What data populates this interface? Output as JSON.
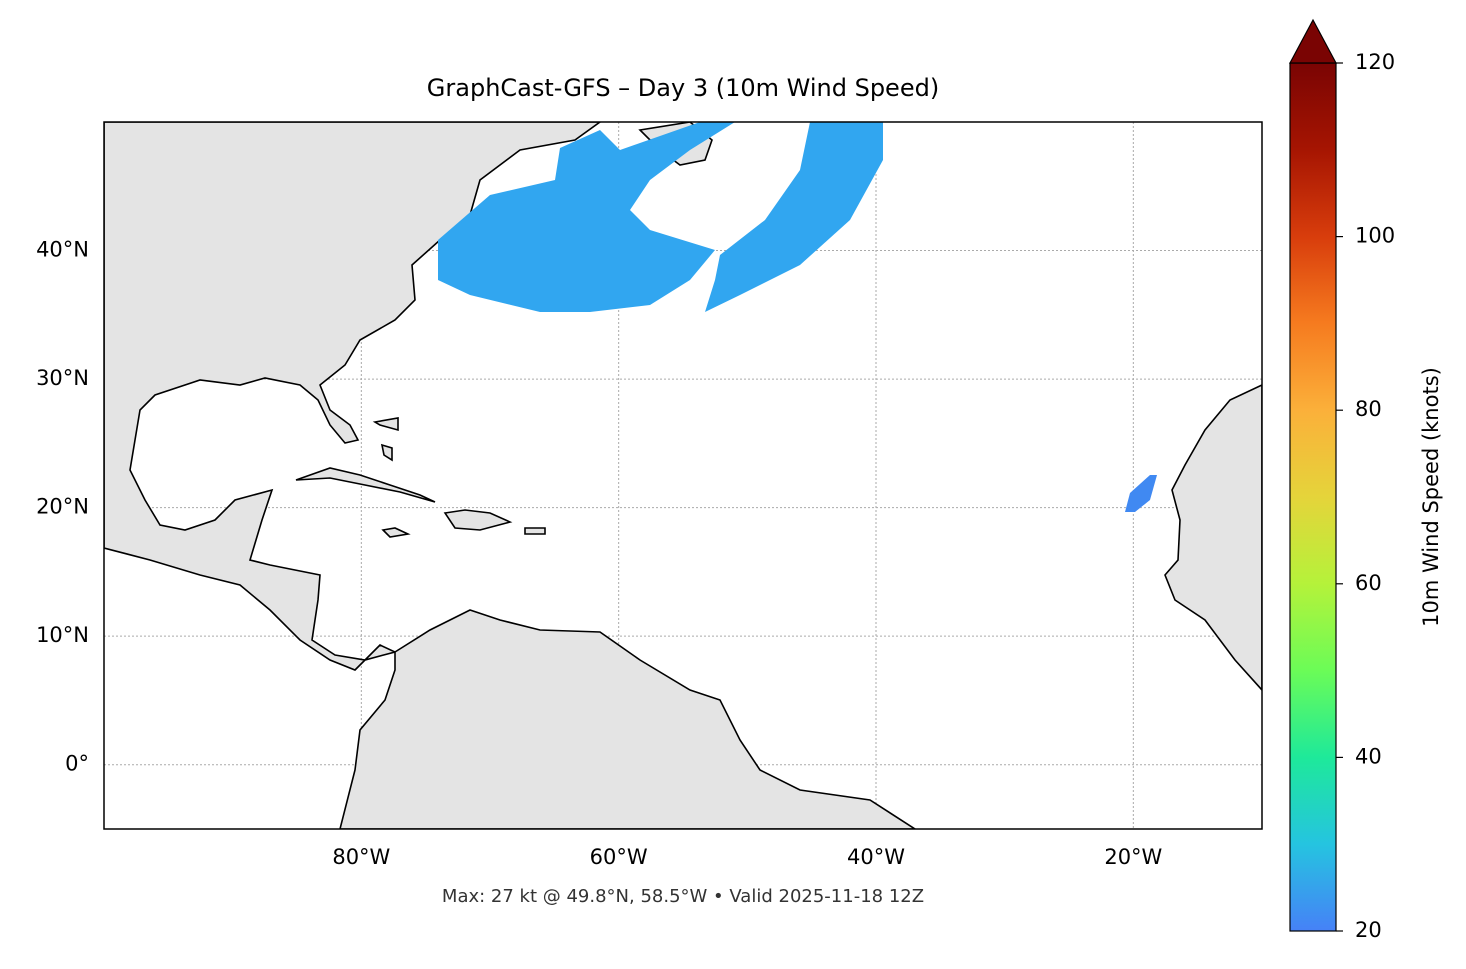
{
  "chart_data": {
    "type": "map",
    "title": "GraphCast-GFS – Day 3 (10m Wind Speed)",
    "footer": "Max: 27 kt @ 49.8°N, 58.5°W • Valid 2025-11-18 12Z",
    "xlim": [
      -100,
      -10
    ],
    "ylim": [
      -5,
      50
    ],
    "xticks": [
      {
        "value": -80,
        "label": "80°W"
      },
      {
        "value": -60,
        "label": "60°W"
      },
      {
        "value": -40,
        "label": "40°W"
      },
      {
        "value": -20,
        "label": "20°W"
      }
    ],
    "yticks": [
      {
        "value": 0,
        "label": "0°"
      },
      {
        "value": 10,
        "label": "10°N"
      },
      {
        "value": 20,
        "label": "20°N"
      },
      {
        "value": 30,
        "label": "30°N"
      },
      {
        "value": 40,
        "label": "40°N"
      }
    ],
    "grid": true,
    "colorbar": {
      "label": "10m Wind Speed (knots)",
      "lim": [
        20,
        120
      ],
      "ticks": [
        20,
        40,
        60,
        80,
        100,
        120
      ],
      "colormap": [
        "#4681f7",
        "#25c4e0",
        "#1ee99a",
        "#6bfc57",
        "#b5f23a",
        "#e5d43a",
        "#fbb03a",
        "#f67b1f",
        "#d83d0c",
        "#a61502",
        "#7a0403"
      ]
    }
  }
}
